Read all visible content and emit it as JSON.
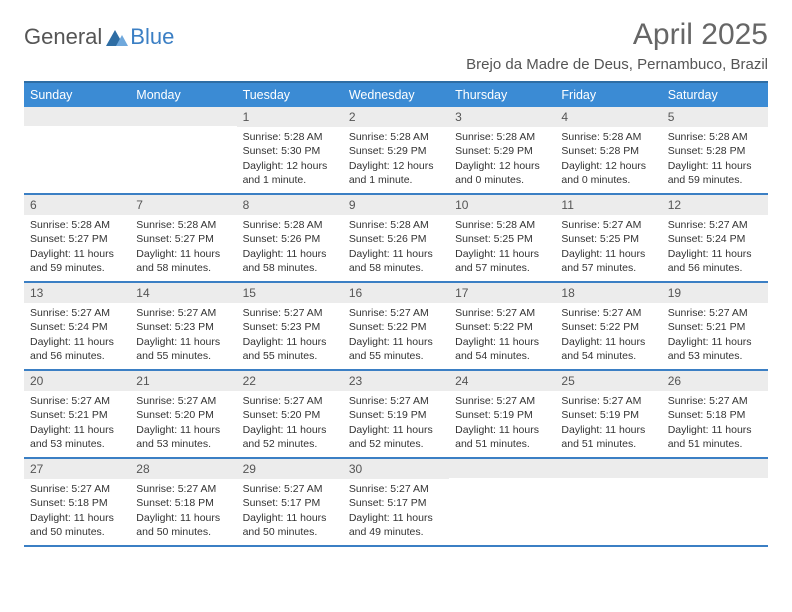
{
  "logo": {
    "general": "General",
    "blue": "Blue"
  },
  "title": "April 2025",
  "location": "Brejo da Madre de Deus, Pernambuco, Brazil",
  "colors": {
    "header_blue": "#3b8bd4",
    "row_divider": "#3b7fc4",
    "daynum_bg": "#ececec",
    "text": "#333333",
    "title_color": "#666666"
  },
  "typography": {
    "title_fontsize": 30,
    "location_fontsize": 15,
    "dow_fontsize": 12.5,
    "body_fontsize": 10.5,
    "daynum_fontsize": 12
  },
  "dow": [
    "Sunday",
    "Monday",
    "Tuesday",
    "Wednesday",
    "Thursday",
    "Friday",
    "Saturday"
  ],
  "weeks": [
    [
      {
        "n": "",
        "sunrise": "",
        "sunset": "",
        "daylight": ""
      },
      {
        "n": "",
        "sunrise": "",
        "sunset": "",
        "daylight": ""
      },
      {
        "n": "1",
        "sunrise": "Sunrise: 5:28 AM",
        "sunset": "Sunset: 5:30 PM",
        "daylight": "Daylight: 12 hours and 1 minute."
      },
      {
        "n": "2",
        "sunrise": "Sunrise: 5:28 AM",
        "sunset": "Sunset: 5:29 PM",
        "daylight": "Daylight: 12 hours and 1 minute."
      },
      {
        "n": "3",
        "sunrise": "Sunrise: 5:28 AM",
        "sunset": "Sunset: 5:29 PM",
        "daylight": "Daylight: 12 hours and 0 minutes."
      },
      {
        "n": "4",
        "sunrise": "Sunrise: 5:28 AM",
        "sunset": "Sunset: 5:28 PM",
        "daylight": "Daylight: 12 hours and 0 minutes."
      },
      {
        "n": "5",
        "sunrise": "Sunrise: 5:28 AM",
        "sunset": "Sunset: 5:28 PM",
        "daylight": "Daylight: 11 hours and 59 minutes."
      }
    ],
    [
      {
        "n": "6",
        "sunrise": "Sunrise: 5:28 AM",
        "sunset": "Sunset: 5:27 PM",
        "daylight": "Daylight: 11 hours and 59 minutes."
      },
      {
        "n": "7",
        "sunrise": "Sunrise: 5:28 AM",
        "sunset": "Sunset: 5:27 PM",
        "daylight": "Daylight: 11 hours and 58 minutes."
      },
      {
        "n": "8",
        "sunrise": "Sunrise: 5:28 AM",
        "sunset": "Sunset: 5:26 PM",
        "daylight": "Daylight: 11 hours and 58 minutes."
      },
      {
        "n": "9",
        "sunrise": "Sunrise: 5:28 AM",
        "sunset": "Sunset: 5:26 PM",
        "daylight": "Daylight: 11 hours and 58 minutes."
      },
      {
        "n": "10",
        "sunrise": "Sunrise: 5:28 AM",
        "sunset": "Sunset: 5:25 PM",
        "daylight": "Daylight: 11 hours and 57 minutes."
      },
      {
        "n": "11",
        "sunrise": "Sunrise: 5:27 AM",
        "sunset": "Sunset: 5:25 PM",
        "daylight": "Daylight: 11 hours and 57 minutes."
      },
      {
        "n": "12",
        "sunrise": "Sunrise: 5:27 AM",
        "sunset": "Sunset: 5:24 PM",
        "daylight": "Daylight: 11 hours and 56 minutes."
      }
    ],
    [
      {
        "n": "13",
        "sunrise": "Sunrise: 5:27 AM",
        "sunset": "Sunset: 5:24 PM",
        "daylight": "Daylight: 11 hours and 56 minutes."
      },
      {
        "n": "14",
        "sunrise": "Sunrise: 5:27 AM",
        "sunset": "Sunset: 5:23 PM",
        "daylight": "Daylight: 11 hours and 55 minutes."
      },
      {
        "n": "15",
        "sunrise": "Sunrise: 5:27 AM",
        "sunset": "Sunset: 5:23 PM",
        "daylight": "Daylight: 11 hours and 55 minutes."
      },
      {
        "n": "16",
        "sunrise": "Sunrise: 5:27 AM",
        "sunset": "Sunset: 5:22 PM",
        "daylight": "Daylight: 11 hours and 55 minutes."
      },
      {
        "n": "17",
        "sunrise": "Sunrise: 5:27 AM",
        "sunset": "Sunset: 5:22 PM",
        "daylight": "Daylight: 11 hours and 54 minutes."
      },
      {
        "n": "18",
        "sunrise": "Sunrise: 5:27 AM",
        "sunset": "Sunset: 5:22 PM",
        "daylight": "Daylight: 11 hours and 54 minutes."
      },
      {
        "n": "19",
        "sunrise": "Sunrise: 5:27 AM",
        "sunset": "Sunset: 5:21 PM",
        "daylight": "Daylight: 11 hours and 53 minutes."
      }
    ],
    [
      {
        "n": "20",
        "sunrise": "Sunrise: 5:27 AM",
        "sunset": "Sunset: 5:21 PM",
        "daylight": "Daylight: 11 hours and 53 minutes."
      },
      {
        "n": "21",
        "sunrise": "Sunrise: 5:27 AM",
        "sunset": "Sunset: 5:20 PM",
        "daylight": "Daylight: 11 hours and 53 minutes."
      },
      {
        "n": "22",
        "sunrise": "Sunrise: 5:27 AM",
        "sunset": "Sunset: 5:20 PM",
        "daylight": "Daylight: 11 hours and 52 minutes."
      },
      {
        "n": "23",
        "sunrise": "Sunrise: 5:27 AM",
        "sunset": "Sunset: 5:19 PM",
        "daylight": "Daylight: 11 hours and 52 minutes."
      },
      {
        "n": "24",
        "sunrise": "Sunrise: 5:27 AM",
        "sunset": "Sunset: 5:19 PM",
        "daylight": "Daylight: 11 hours and 51 minutes."
      },
      {
        "n": "25",
        "sunrise": "Sunrise: 5:27 AM",
        "sunset": "Sunset: 5:19 PM",
        "daylight": "Daylight: 11 hours and 51 minutes."
      },
      {
        "n": "26",
        "sunrise": "Sunrise: 5:27 AM",
        "sunset": "Sunset: 5:18 PM",
        "daylight": "Daylight: 11 hours and 51 minutes."
      }
    ],
    [
      {
        "n": "27",
        "sunrise": "Sunrise: 5:27 AM",
        "sunset": "Sunset: 5:18 PM",
        "daylight": "Daylight: 11 hours and 50 minutes."
      },
      {
        "n": "28",
        "sunrise": "Sunrise: 5:27 AM",
        "sunset": "Sunset: 5:18 PM",
        "daylight": "Daylight: 11 hours and 50 minutes."
      },
      {
        "n": "29",
        "sunrise": "Sunrise: 5:27 AM",
        "sunset": "Sunset: 5:17 PM",
        "daylight": "Daylight: 11 hours and 50 minutes."
      },
      {
        "n": "30",
        "sunrise": "Sunrise: 5:27 AM",
        "sunset": "Sunset: 5:17 PM",
        "daylight": "Daylight: 11 hours and 49 minutes."
      },
      {
        "n": "",
        "sunrise": "",
        "sunset": "",
        "daylight": ""
      },
      {
        "n": "",
        "sunrise": "",
        "sunset": "",
        "daylight": ""
      },
      {
        "n": "",
        "sunrise": "",
        "sunset": "",
        "daylight": ""
      }
    ]
  ]
}
